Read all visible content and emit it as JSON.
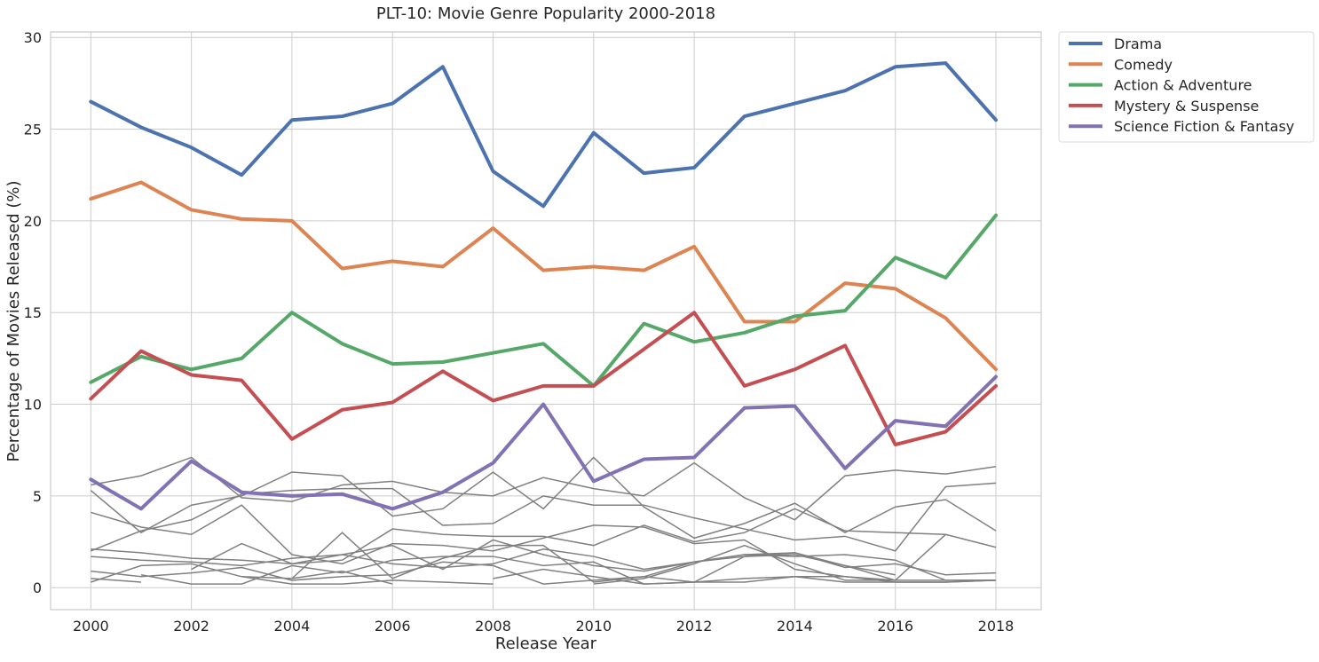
{
  "chart_data": {
    "type": "line",
    "title": "PLT-10: Movie Genre Popularity 2000-2018",
    "xlabel": "Release Year",
    "ylabel": "Percentage of Movies Released (%)",
    "xlim": [
      1999.2,
      2018.9
    ],
    "ylim": [
      -1.2,
      30.3
    ],
    "xticks": [
      2000,
      2002,
      2004,
      2006,
      2008,
      2010,
      2012,
      2014,
      2016,
      2018
    ],
    "yticks": [
      0,
      5,
      10,
      15,
      20,
      25,
      30
    ],
    "grid": true,
    "legend_position": "outside-top-right",
    "x": [
      2000,
      2001,
      2002,
      2003,
      2004,
      2005,
      2006,
      2007,
      2008,
      2009,
      2010,
      2011,
      2012,
      2013,
      2014,
      2015,
      2016,
      2017,
      2018
    ],
    "series": [
      {
        "name": "Drama",
        "color": "#4c72b0",
        "values": [
          26.5,
          25.1,
          24.0,
          22.5,
          25.5,
          25.7,
          26.4,
          28.4,
          22.7,
          20.8,
          24.8,
          22.6,
          22.9,
          25.7,
          26.4,
          27.1,
          28.4,
          28.6,
          25.5
        ]
      },
      {
        "name": "Comedy",
        "color": "#dd8452",
        "values": [
          21.2,
          22.1,
          20.6,
          20.1,
          20.0,
          17.4,
          17.8,
          17.5,
          19.6,
          17.3,
          17.5,
          17.3,
          18.6,
          14.5,
          14.5,
          16.6,
          16.3,
          14.7,
          11.9
        ]
      },
      {
        "name": "Action & Adventure",
        "color": "#55a868",
        "values": [
          11.2,
          12.6,
          11.9,
          12.5,
          15.0,
          13.3,
          12.2,
          12.3,
          12.8,
          13.3,
          11.0,
          14.4,
          13.4,
          13.9,
          14.8,
          15.1,
          18.0,
          16.9,
          20.3
        ]
      },
      {
        "name": "Mystery & Suspense",
        "color": "#c44e52",
        "values": [
          10.3,
          12.9,
          11.6,
          11.3,
          8.1,
          9.7,
          10.1,
          11.8,
          10.2,
          11.0,
          11.0,
          13.0,
          15.0,
          11.0,
          11.9,
          13.2,
          7.8,
          8.5,
          11.0
        ]
      },
      {
        "name": "Science Fiction & Fantasy",
        "color": "#8172b3",
        "values": [
          5.9,
          4.3,
          6.9,
          5.2,
          5.0,
          5.1,
          4.3,
          5.2,
          6.8,
          10.0,
          5.8,
          7.0,
          7.1,
          9.8,
          9.9,
          6.5,
          9.1,
          8.8,
          11.5
        ]
      }
    ],
    "other_series": [
      {
        "color": "#808080",
        "values": [
          5.6,
          6.1,
          7.1,
          4.9,
          4.7,
          5.6,
          5.8,
          5.2,
          5.0,
          6.0,
          5.4,
          5.0,
          6.8,
          4.9,
          3.7,
          6.1,
          6.4,
          6.2,
          6.6
        ]
      },
      {
        "color": "#808080",
        "values": [
          5.3,
          3.0,
          4.5,
          5.0,
          6.3,
          6.1,
          3.9,
          4.3,
          6.3,
          4.3,
          7.1,
          4.4,
          2.7,
          3.5,
          4.6,
          3.0,
          4.4,
          4.8,
          3.1
        ]
      },
      {
        "color": "#808080",
        "values": [
          4.1,
          3.3,
          2.9,
          4.5,
          1.8,
          1.3,
          2.4,
          2.3,
          2.0,
          2.7,
          3.4,
          3.3,
          2.4,
          2.6,
          1.0,
          0.6,
          0.3,
          0.3,
          0.4
        ]
      },
      {
        "color": "#808080",
        "values": [
          2.0,
          3.1,
          3.7,
          5.1,
          5.3,
          5.4,
          5.4,
          3.4,
          3.5,
          5.0,
          4.5,
          4.5,
          3.8,
          3.2,
          2.6,
          2.8,
          2.0,
          5.5,
          5.7
        ]
      },
      {
        "color": "#808080",
        "values": [
          2.1,
          1.9,
          1.6,
          1.5,
          1.3,
          1.5,
          3.2,
          2.9,
          2.8,
          2.8,
          2.3,
          3.4,
          2.5,
          3.0,
          4.3,
          3.1,
          3.0,
          2.9,
          2.2
        ]
      },
      {
        "color": "#808080",
        "values": [
          1.7,
          1.5,
          1.4,
          1.2,
          1.6,
          1.8,
          2.3,
          1.0,
          2.6,
          1.8,
          1.2,
          0.9,
          1.4,
          1.7,
          1.9,
          1.1,
          1.3,
          0.7,
          0.8
        ]
      },
      {
        "color": "#808080",
        "values": [
          0.9,
          0.6,
          0.8,
          1.1,
          0.4,
          0.6,
          0.7,
          1.4,
          1.2,
          0.2,
          0.4,
          0.6,
          0.3,
          0.3,
          0.6,
          0.6,
          0.4,
          0.4,
          0.4
        ]
      },
      {
        "color": "#808080",
        "values": [
          0.5,
          0.3,
          null,
          0.6,
          0.5,
          0.9,
          0.2,
          null,
          0.5,
          1.0,
          0.6,
          0.2,
          0.3,
          0.5,
          0.6,
          0.3,
          0.3,
          0.3,
          0.4
        ]
      },
      {
        "color": "#808080",
        "values": [
          0.3,
          1.2,
          1.3,
          0.6,
          0.2,
          0.2,
          0.4,
          0.3,
          0.2,
          null,
          0.2,
          0.5,
          1.3,
          2.3,
          1.3,
          0.4,
          0.4,
          null,
          0.4
        ]
      },
      {
        "color": "#808080",
        "values": [
          null,
          0.7,
          0.2,
          0.2,
          1.2,
          0.8,
          1.5,
          1.7,
          1.7,
          1.2,
          1.4,
          0.2,
          0.3,
          1.7,
          1.8,
          1.2,
          0.7,
          null,
          null
        ]
      },
      {
        "color": "#808080",
        "values": [
          null,
          null,
          1.0,
          2.4,
          1.3,
          1.8,
          1.3,
          1.1,
          1.3,
          2.1,
          1.7,
          1.0,
          1.4,
          1.8,
          1.7,
          1.8,
          1.5,
          0.4,
          0.4
        ]
      },
      {
        "color": "#808080",
        "values": [
          null,
          null,
          null,
          null,
          0.5,
          3.0,
          0.5,
          1.6,
          2.3,
          2.3,
          0.3,
          0.6,
          1.4,
          1.8,
          1.9,
          1.2,
          0.4,
          2.9,
          null
        ]
      }
    ]
  }
}
